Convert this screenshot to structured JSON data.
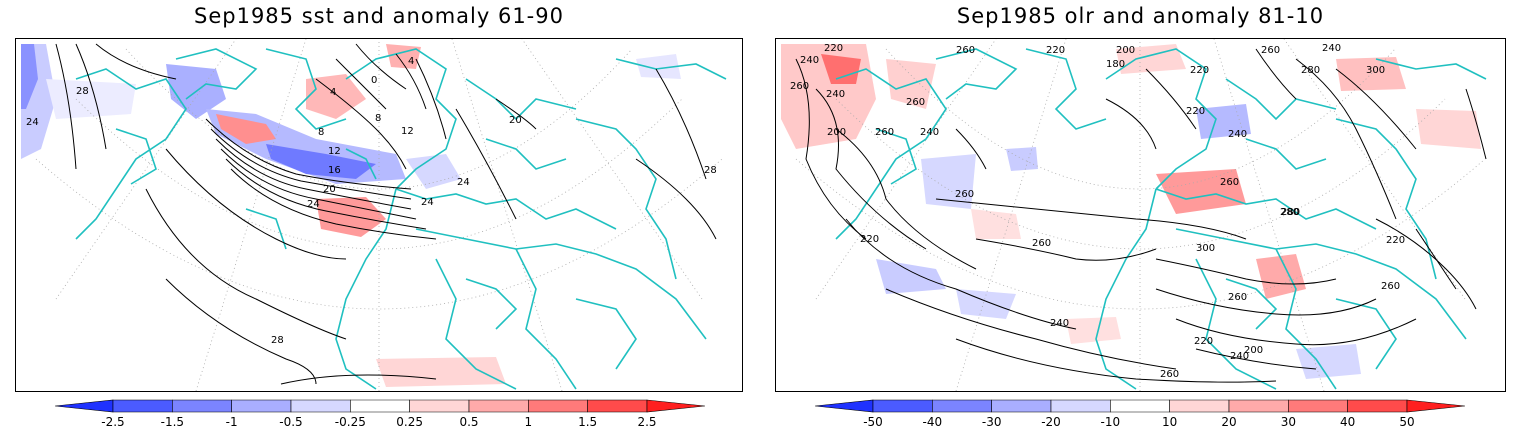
{
  "panels": [
    {
      "title": "Sep1985 sst and anomaly 61-90",
      "colorbar": {
        "labels": [
          "-2.5",
          "-1.5",
          "-1",
          "-0.5",
          "-0.25",
          "0.25",
          "0.5",
          "1",
          "1.5",
          "2.5"
        ],
        "colors": [
          "#1f32ff",
          "#4b5bff",
          "#7b84ff",
          "#a9aeff",
          "#d6d8ff",
          "#ffffff",
          "#ffd6d6",
          "#ffaaaa",
          "#ff7a7a",
          "#ff4b4b",
          "#ff1f1f"
        ]
      },
      "contour_labels": [
        "24",
        "28",
        "0",
        "4",
        "8",
        "12",
        "16",
        "20",
        "24",
        "28",
        "20",
        "24",
        "24",
        "12",
        "8",
        "4",
        "28"
      ]
    },
    {
      "title": "Sep1985 olr and anomaly 81-10",
      "colorbar": {
        "labels": [
          "-50",
          "-40",
          "-30",
          "-20",
          "-10",
          "10",
          "20",
          "30",
          "40",
          "50"
        ],
        "colors": [
          "#1f32ff",
          "#4b5bff",
          "#7b84ff",
          "#a9aeff",
          "#d6d8ff",
          "#ffffff",
          "#ffd6d6",
          "#ffaaaa",
          "#ff7a7a",
          "#ff4b4b",
          "#ff1f1f"
        ]
      },
      "contour_labels": [
        "220",
        "240",
        "260",
        "200",
        "180",
        "220",
        "240",
        "260",
        "280",
        "300",
        "260",
        "220",
        "240",
        "260",
        "240",
        "260",
        "200",
        "220",
        "240",
        "260",
        "280",
        "300",
        "260",
        "260",
        "220",
        "240",
        "220",
        "200",
        "240",
        "260",
        "220",
        "260",
        "260",
        "280"
      ]
    }
  ],
  "colors": {
    "coastline": "#20c0c0",
    "contour": "#000000",
    "graticule": "#999999"
  }
}
